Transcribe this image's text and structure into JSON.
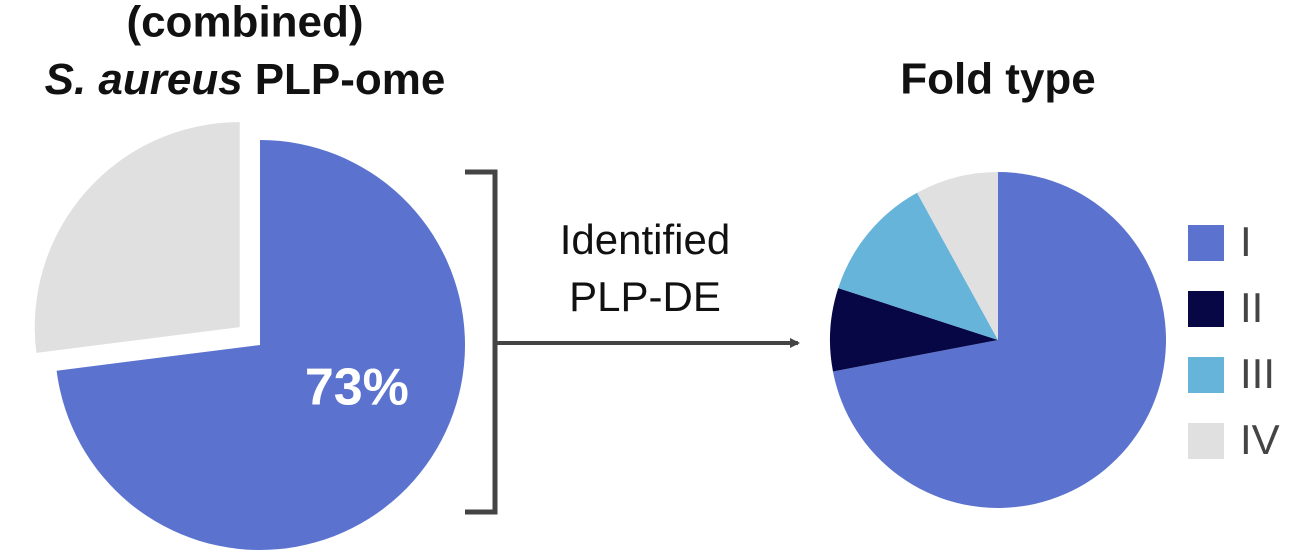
{
  "chart_data": [
    {
      "type": "pie",
      "title": [
        "(combined)",
        "S. aureus",
        "PLP-ome"
      ],
      "values": [
        73,
        27
      ],
      "value_labels": [
        "73%",
        null
      ],
      "colors": [
        "#5b73cf",
        "#e0e0e0"
      ],
      "exploded": [
        false,
        true
      ]
    },
    {
      "type": "pie",
      "title": "Fold type",
      "categories": [
        "I",
        "II",
        "III",
        "IV"
      ],
      "values": [
        72,
        8,
        12,
        8
      ],
      "colors": [
        "#5b73cf",
        "#070745",
        "#66b4d9",
        "#e0e0e0"
      ],
      "legend": "right"
    }
  ],
  "annotation": [
    "Identified",
    "PLP-DE"
  ]
}
